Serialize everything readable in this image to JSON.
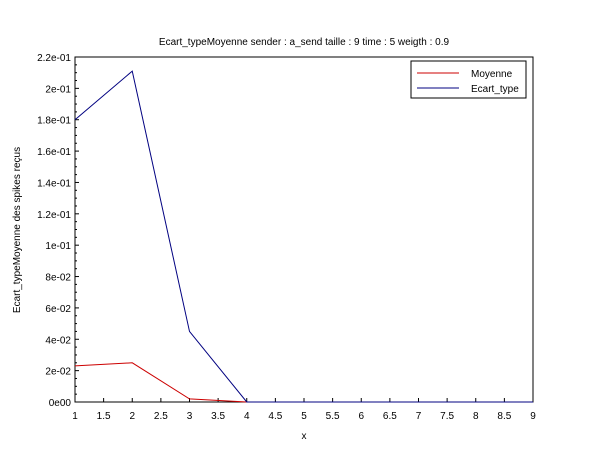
{
  "chart_data": {
    "type": "line",
    "title": "Ecart_typeMoyenne sender : a_send taille : 9 time : 5 weigth : 0.9",
    "xlabel": "x",
    "ylabel": "Ecart_typeMoyenne des spikes reçus",
    "xlim": [
      1,
      9
    ],
    "ylim": [
      0,
      0.22
    ],
    "x_ticks": [
      "1",
      "1.5",
      "2",
      "2.5",
      "3",
      "3.5",
      "4",
      "4.5",
      "5",
      "5.5",
      "6",
      "6.5",
      "7",
      "7.5",
      "8",
      "8.5",
      "9"
    ],
    "y_ticks": [
      "0e00",
      "2e-02",
      "4e-02",
      "6e-02",
      "8e-02",
      "1e-01",
      "1.2e-01",
      "1.4e-01",
      "1.6e-01",
      "1.8e-01",
      "2e-01",
      "2.2e-01"
    ],
    "x": [
      1,
      2,
      3,
      4,
      5,
      6,
      7,
      8,
      9
    ],
    "series": [
      {
        "name": "Moyenne",
        "color": "#cc0000",
        "values": [
          0.023,
          0.025,
          0.002,
          0.0,
          0.0,
          0.0,
          0.0,
          0.0,
          0.0
        ]
      },
      {
        "name": "Ecart_type",
        "color": "#000080",
        "values": [
          0.18,
          0.211,
          0.045,
          0.0,
          0.0,
          0.0,
          0.0,
          0.0,
          0.0
        ]
      }
    ],
    "legend_position": "top-right",
    "grid": false
  }
}
